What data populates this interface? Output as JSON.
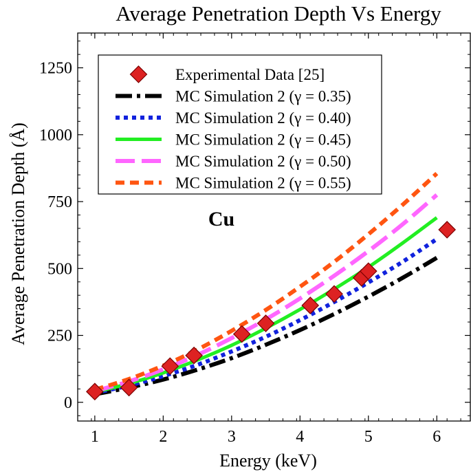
{
  "chart_data": {
    "type": "line",
    "title": "Average Penetration Depth Vs Energy",
    "xlabel": "Energy (keV)",
    "ylabel": "Average Penetration Depth (Å)",
    "annotation": "Cu",
    "xlim": [
      0.75,
      6.5
    ],
    "ylim": [
      -70,
      1380
    ],
    "xticks": [
      1,
      2,
      3,
      4,
      5,
      6
    ],
    "yticks": [
      0,
      250,
      500,
      750,
      1000,
      1250
    ],
    "legend_position": "top-left",
    "colors": {
      "frame": "#000000",
      "marker_fill": "#dd2222",
      "marker_edge": "#7a0000"
    },
    "series": [
      {
        "name": "Experimental Data [25]",
        "kind": "scatter",
        "color": "#dd2222",
        "points": [
          [
            1.0,
            40
          ],
          [
            1.5,
            55
          ],
          [
            2.1,
            135
          ],
          [
            2.45,
            175
          ],
          [
            3.15,
            255
          ],
          [
            3.5,
            295
          ],
          [
            4.15,
            362
          ],
          [
            4.5,
            405
          ],
          [
            4.9,
            465
          ],
          [
            5.0,
            490
          ],
          [
            6.15,
            645
          ]
        ]
      },
      {
        "name": "MC Simulation 2 (γ = 0.35)",
        "kind": "line",
        "color": "#000000",
        "style": "dashdot",
        "x": [
          1,
          1.5,
          2,
          2.5,
          3,
          3.5,
          4,
          4.5,
          5,
          5.5,
          6
        ],
        "y": [
          30,
          55,
          85,
          122,
          165,
          215,
          270,
          330,
          395,
          465,
          540
        ]
      },
      {
        "name": "MC Simulation 2 (γ = 0.40)",
        "kind": "line",
        "color": "#1122dd",
        "style": "dotted",
        "x": [
          1,
          1.5,
          2,
          2.5,
          3,
          3.5,
          4,
          4.5,
          5,
          5.5,
          6
        ],
        "y": [
          35,
          63,
          98,
          140,
          190,
          245,
          307,
          375,
          448,
          525,
          610
        ]
      },
      {
        "name": "MC Simulation 2 (γ = 0.45)",
        "kind": "line",
        "color": "#22ee22",
        "style": "solid",
        "x": [
          1,
          1.5,
          2,
          2.5,
          3,
          3.5,
          4,
          4.5,
          5,
          5.5,
          6
        ],
        "y": [
          38,
          70,
          110,
          158,
          213,
          277,
          347,
          423,
          505,
          595,
          690
        ]
      },
      {
        "name": "MC Simulation 2 (γ = 0.50)",
        "kind": "line",
        "color": "#ff66ff",
        "style": "longdash",
        "x": [
          1,
          1.5,
          2,
          2.5,
          3,
          3.5,
          4,
          4.5,
          5,
          5.5,
          6
        ],
        "y": [
          42,
          78,
          123,
          177,
          240,
          310,
          388,
          473,
          565,
          665,
          775
        ]
      },
      {
        "name": "MC Simulation 2 (γ = 0.55)",
        "kind": "line",
        "color": "#ff5511",
        "style": "dashed",
        "x": [
          1,
          1.5,
          2,
          2.5,
          3,
          3.5,
          4,
          4.5,
          5,
          5.5,
          6
        ],
        "y": [
          47,
          87,
          137,
          197,
          267,
          345,
          432,
          525,
          628,
          738,
          855
        ]
      }
    ]
  }
}
